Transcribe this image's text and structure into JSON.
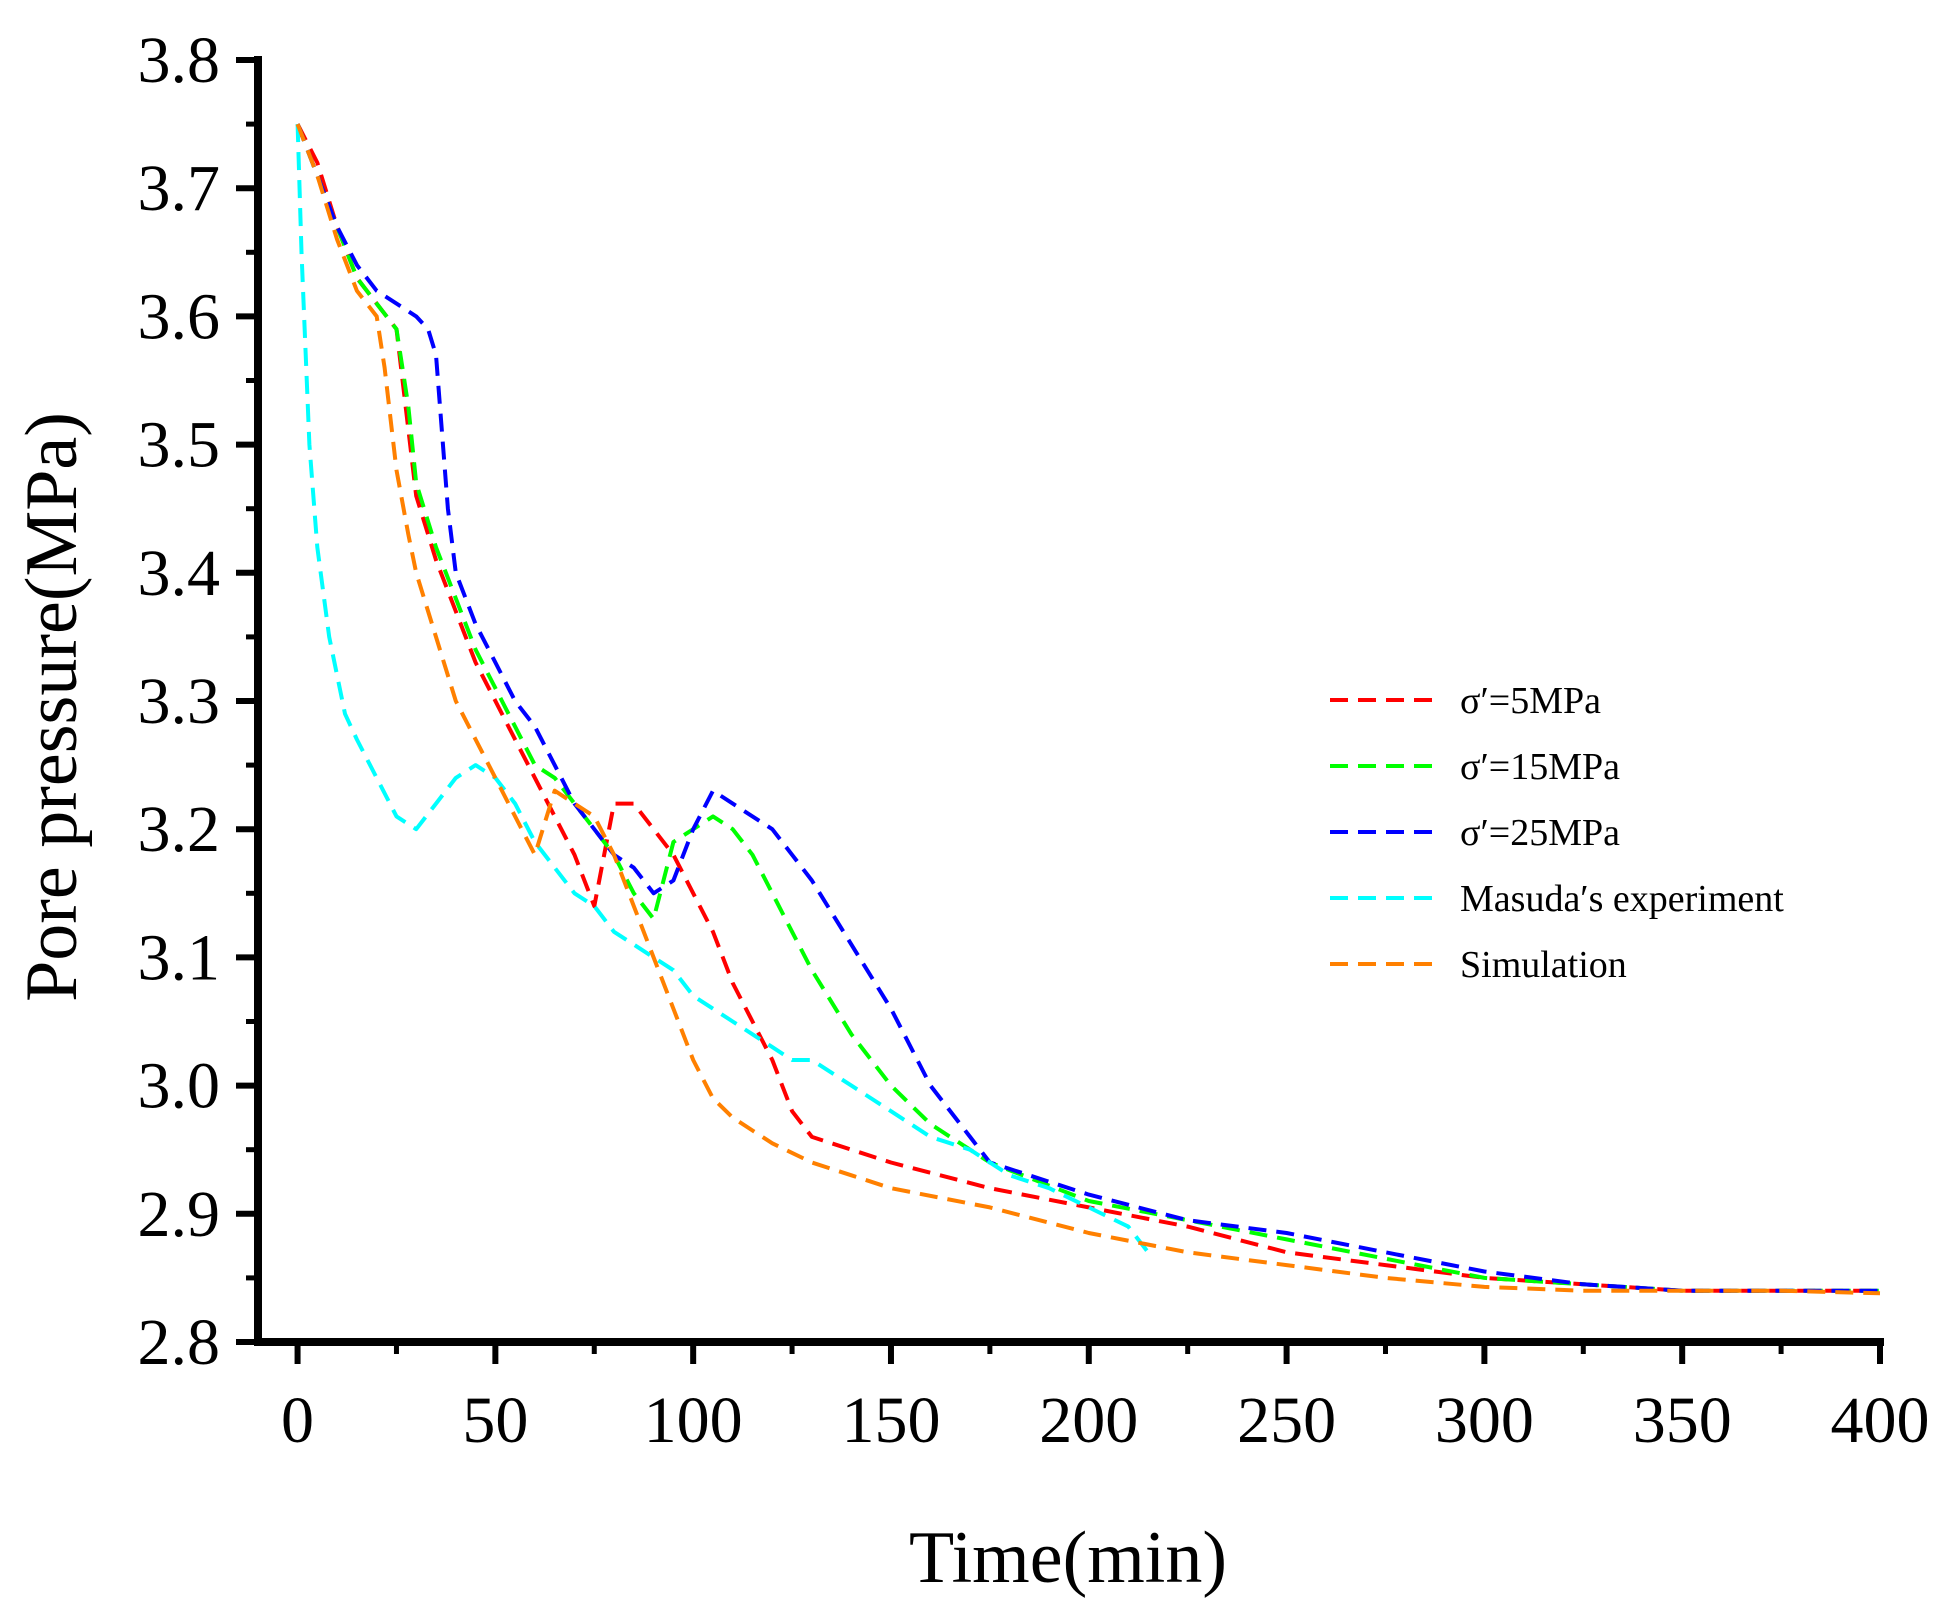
{
  "chart_data": {
    "type": "line",
    "title": "",
    "xlabel": "Time(min)",
    "ylabel": "Pore pressure(MPa)",
    "xlim": [
      -10,
      400
    ],
    "ylim": [
      2.8,
      3.8
    ],
    "xticks": [
      0,
      50,
      100,
      150,
      200,
      250,
      300,
      350,
      400
    ],
    "xtick_labels": [
      "0",
      "50",
      "100",
      "150",
      "200",
      "250",
      "300",
      "350",
      "400"
    ],
    "yticks": [
      2.8,
      2.9,
      3.0,
      3.1,
      3.2,
      3.3,
      3.4,
      3.5,
      3.6,
      3.7,
      3.8
    ],
    "ytick_labels": [
      "2.8",
      "2.9",
      "3.0",
      "3.1",
      "3.2",
      "3.3",
      "3.4",
      "3.5",
      "3.6",
      "3.7",
      "3.8"
    ],
    "grid": false,
    "legend_position": "right",
    "line_style": "dashed",
    "series": [
      {
        "name": "σ′=5MPa",
        "color": "#ff0000",
        "x": [
          0,
          5,
          10,
          15,
          20,
          25,
          30,
          35,
          40,
          45,
          50,
          55,
          60,
          65,
          70,
          75,
          80,
          85,
          90,
          95,
          100,
          105,
          110,
          115,
          120,
          125,
          130,
          140,
          150,
          175,
          200,
          225,
          250,
          275,
          300,
          325,
          350,
          375,
          400
        ],
        "y": [
          3.75,
          3.72,
          3.67,
          3.63,
          3.61,
          3.59,
          3.46,
          3.41,
          3.37,
          3.33,
          3.3,
          3.27,
          3.24,
          3.21,
          3.18,
          3.14,
          3.22,
          3.22,
          3.2,
          3.18,
          3.15,
          3.12,
          3.08,
          3.05,
          3.02,
          2.98,
          2.96,
          2.95,
          2.94,
          2.92,
          2.905,
          2.89,
          2.87,
          2.86,
          2.85,
          2.845,
          2.84,
          2.84,
          2.84
        ]
      },
      {
        "name": "σ′=15MPa",
        "color": "#00ff00",
        "x": [
          0,
          5,
          10,
          15,
          20,
          25,
          28,
          30,
          35,
          40,
          45,
          50,
          55,
          60,
          65,
          70,
          75,
          80,
          85,
          90,
          95,
          100,
          105,
          110,
          115,
          120,
          125,
          130,
          140,
          150,
          160,
          170,
          175,
          200,
          225,
          250,
          275,
          300,
          325,
          350,
          375,
          400
        ],
        "y": [
          3.75,
          3.71,
          3.67,
          3.63,
          3.61,
          3.59,
          3.53,
          3.47,
          3.42,
          3.38,
          3.34,
          3.31,
          3.28,
          3.25,
          3.24,
          3.22,
          3.2,
          3.18,
          3.15,
          3.13,
          3.19,
          3.2,
          3.21,
          3.2,
          3.18,
          3.15,
          3.12,
          3.09,
          3.04,
          3.0,
          2.97,
          2.95,
          2.94,
          2.91,
          2.895,
          2.88,
          2.865,
          2.85,
          2.845,
          2.84,
          2.84,
          2.84
        ]
      },
      {
        "name": "σ′=25MPa",
        "color": "#0000ff",
        "x": [
          0,
          5,
          10,
          15,
          20,
          25,
          30,
          33,
          35,
          38,
          40,
          45,
          50,
          55,
          60,
          65,
          70,
          75,
          80,
          85,
          90,
          95,
          100,
          105,
          110,
          115,
          120,
          125,
          130,
          140,
          150,
          160,
          170,
          175,
          200,
          225,
          250,
          275,
          300,
          325,
          350,
          375,
          400
        ],
        "y": [
          3.75,
          3.71,
          3.67,
          3.64,
          3.62,
          3.61,
          3.6,
          3.59,
          3.57,
          3.45,
          3.4,
          3.36,
          3.33,
          3.3,
          3.28,
          3.25,
          3.22,
          3.2,
          3.18,
          3.17,
          3.15,
          3.16,
          3.2,
          3.23,
          3.22,
          3.21,
          3.2,
          3.18,
          3.16,
          3.11,
          3.06,
          3.0,
          2.96,
          2.94,
          2.915,
          2.895,
          2.885,
          2.87,
          2.855,
          2.845,
          2.84,
          2.84,
          2.84
        ]
      },
      {
        "name": "Masuda′s experiment",
        "color": "#00ffff",
        "x": [
          0,
          1,
          3,
          5,
          8,
          12,
          15,
          20,
          25,
          30,
          35,
          40,
          45,
          50,
          55,
          60,
          65,
          70,
          75,
          80,
          85,
          90,
          95,
          100,
          105,
          110,
          115,
          120,
          125,
          130,
          140,
          150,
          160,
          170,
          180,
          190,
          200,
          210,
          215
        ],
        "y": [
          3.75,
          3.65,
          3.5,
          3.42,
          3.35,
          3.29,
          3.27,
          3.24,
          3.21,
          3.2,
          3.22,
          3.24,
          3.25,
          3.24,
          3.22,
          3.19,
          3.17,
          3.15,
          3.14,
          3.12,
          3.11,
          3.1,
          3.09,
          3.07,
          3.06,
          3.05,
          3.04,
          3.03,
          3.02,
          3.02,
          3.0,
          2.98,
          2.96,
          2.95,
          2.93,
          2.92,
          2.905,
          2.89,
          2.87
        ]
      },
      {
        "name": "Simulation",
        "color": "#ff8000",
        "x": [
          0,
          5,
          10,
          15,
          20,
          22,
          25,
          28,
          30,
          35,
          40,
          45,
          50,
          55,
          60,
          62,
          65,
          70,
          75,
          80,
          85,
          90,
          95,
          100,
          105,
          110,
          115,
          120,
          130,
          140,
          150,
          175,
          200,
          225,
          250,
          275,
          300,
          325,
          350,
          375,
          400
        ],
        "y": [
          3.75,
          3.71,
          3.66,
          3.62,
          3.6,
          3.56,
          3.48,
          3.43,
          3.4,
          3.35,
          3.3,
          3.27,
          3.24,
          3.21,
          3.18,
          3.2,
          3.23,
          3.22,
          3.21,
          3.18,
          3.14,
          3.1,
          3.06,
          3.02,
          2.99,
          2.975,
          2.965,
          2.955,
          2.94,
          2.93,
          2.92,
          2.905,
          2.885,
          2.87,
          2.86,
          2.85,
          2.843,
          2.84,
          2.84,
          2.84,
          2.838
        ]
      }
    ]
  }
}
